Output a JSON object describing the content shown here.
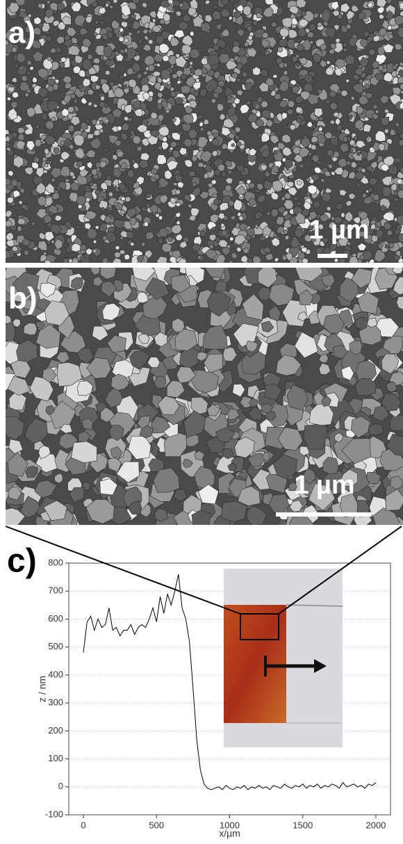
{
  "images": [
    {
      "label": "a)",
      "scale_bar": "1 µm"
    },
    {
      "label": "b)",
      "scale_bar": "1 µm"
    }
  ],
  "chart_data": {
    "type": "line",
    "panel_label": "c)",
    "x_label": "x/µm",
    "y_label": "z / nm",
    "color": "#000000",
    "x": [
      0,
      25,
      50,
      75,
      100,
      125,
      150,
      175,
      200,
      225,
      250,
      275,
      300,
      325,
      350,
      375,
      400,
      425,
      450,
      475,
      500,
      525,
      550,
      575,
      600,
      625,
      650,
      675,
      700,
      725,
      750,
      775,
      800,
      825,
      850,
      875,
      900,
      925,
      950,
      975,
      1000,
      1025,
      1050,
      1075,
      1100,
      1125,
      1150,
      1175,
      1200,
      1225,
      1250,
      1275,
      1300,
      1325,
      1350,
      1375,
      1400,
      1425,
      1450,
      1475,
      1500,
      1525,
      1550,
      1575,
      1600,
      1625,
      1650,
      1675,
      1700,
      1725,
      1750,
      1775,
      1800,
      1825,
      1850,
      1875,
      1900,
      1925,
      1950,
      1975,
      2000
    ],
    "values": [
      480,
      590,
      610,
      560,
      600,
      570,
      580,
      640,
      560,
      570,
      540,
      560,
      560,
      580,
      545,
      570,
      580,
      570,
      600,
      640,
      590,
      680,
      620,
      690,
      650,
      700,
      760,
      640,
      600,
      520,
      350,
      170,
      60,
      10,
      -5,
      -10,
      -5,
      0,
      -10,
      5,
      -5,
      -10,
      0,
      -5,
      5,
      -10,
      0,
      -5,
      5,
      -5,
      0,
      -10,
      5,
      0,
      -5,
      10,
      0,
      -5,
      5,
      0,
      10,
      -5,
      5,
      0,
      10,
      -5,
      5,
      0,
      10,
      5,
      -5,
      15,
      0,
      5,
      10,
      0,
      5,
      -5,
      10,
      5,
      15
    ],
    "xlim": [
      -100,
      2100
    ],
    "ylim": [
      -100,
      800
    ],
    "xticks": [
      0,
      500,
      1000,
      1500,
      2000
    ],
    "yticks": [
      -100,
      0,
      100,
      200,
      300,
      400,
      500,
      600,
      700,
      800
    ],
    "grid": true
  }
}
